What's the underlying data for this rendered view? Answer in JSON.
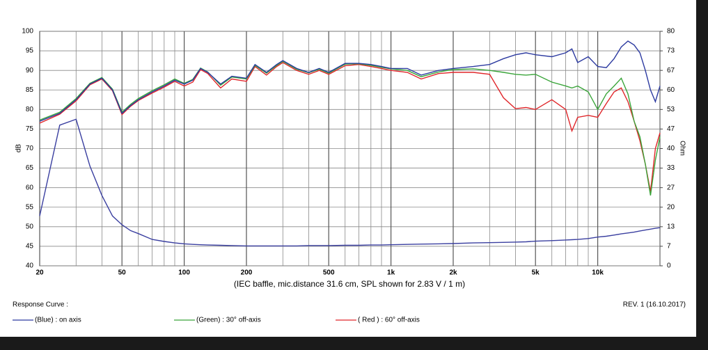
{
  "chart_data": {
    "type": "line",
    "caption": "(IEC baffle, mic.distance 31.6 cm, SPL shown for 2.83 V / 1 m)",
    "ylabel": "dB",
    "y2label": "Ohm",
    "legend_title": "Response Curve :",
    "revision": "REV. 1 (16.10.2017)",
    "xscale": "log",
    "grid": true,
    "xlim": [
      20,
      20000
    ],
    "ylim": [
      40,
      100
    ],
    "y2lim": [
      0,
      80
    ],
    "xticks": [
      20,
      50,
      100,
      200,
      500,
      {
        "value": 1000,
        "label": "1k"
      },
      {
        "value": 2000,
        "label": "2k"
      },
      {
        "value": 5000,
        "label": "5k"
      },
      {
        "value": 10000,
        "label": "10k"
      }
    ],
    "xminor": [
      30,
      40,
      60,
      70,
      80,
      90,
      300,
      400,
      600,
      700,
      800,
      900,
      3000,
      4000,
      6000,
      7000,
      8000,
      9000
    ],
    "yticks": [
      40,
      45,
      50,
      55,
      60,
      65,
      70,
      75,
      80,
      85,
      90,
      95,
      100
    ],
    "y2ticks": [
      0,
      {
        "value": 6.667,
        "label": "7"
      },
      {
        "value": 13.333,
        "label": "13"
      },
      20,
      {
        "value": 26.667,
        "label": "27"
      },
      {
        "value": 33.333,
        "label": "33"
      },
      40,
      {
        "value": 46.667,
        "label": "47"
      },
      {
        "value": 53.333,
        "label": "53"
      },
      60,
      {
        "value": 66.667,
        "label": "67"
      },
      {
        "value": 73.333,
        "label": "73"
      },
      80
    ],
    "x": [
      20,
      25,
      30,
      35,
      40,
      45,
      50,
      55,
      60,
      70,
      80,
      90,
      100,
      110,
      120,
      130,
      150,
      170,
      200,
      220,
      250,
      280,
      300,
      350,
      400,
      450,
      500,
      600,
      700,
      800,
      900,
      1000,
      1200,
      1400,
      1700,
      2000,
      2500,
      3000,
      3500,
      4000,
      4500,
      5000,
      6000,
      7000,
      7500,
      8000,
      9000,
      10000,
      11000,
      12000,
      13000,
      14000,
      15000,
      16000,
      17000,
      18000,
      19000,
      20000
    ],
    "series": [
      {
        "name": "(Blue) : on axis",
        "color": "#2c3aa0",
        "values": [
          77,
          79,
          82.5,
          86.5,
          88,
          85,
          79,
          81,
          82.5,
          84.5,
          86,
          87.5,
          86.5,
          87.5,
          90.5,
          89.5,
          86.5,
          88.5,
          88,
          91.5,
          89.5,
          91.5,
          92.5,
          90.5,
          89.5,
          90.5,
          89.5,
          91.8,
          91.8,
          91.5,
          91,
          90.5,
          90.5,
          88.8,
          90,
          90.5,
          91,
          91.5,
          93,
          94,
          94.5,
          94,
          93.5,
          94.5,
          95.5,
          92,
          93.5,
          91,
          90.7,
          93,
          96,
          97.5,
          96.5,
          94.5,
          90,
          85,
          82,
          86
        ]
      },
      {
        "name": "(Green) : 30° off-axis",
        "color": "#3aa53a",
        "values": [
          77.3,
          79.3,
          82.8,
          86.7,
          88.2,
          85.2,
          79.3,
          81.3,
          82.8,
          84.8,
          86.3,
          87.8,
          86.7,
          87.7,
          90.6,
          89.6,
          86.2,
          88.3,
          87.8,
          91.3,
          89.3,
          91.3,
          92.3,
          90.3,
          89.4,
          90.3,
          89.3,
          91.6,
          91.7,
          91.3,
          90.8,
          90.4,
          90,
          88.4,
          89.6,
          90.2,
          90.4,
          90,
          89.5,
          89,
          88.8,
          89,
          87,
          86,
          85.5,
          86,
          84.5,
          80,
          84,
          86,
          88,
          84,
          77,
          73,
          66,
          58,
          67,
          73
        ]
      },
      {
        "name": "( Red ) : 60° off-axis",
        "color": "#e0262a",
        "values": [
          76.5,
          78.8,
          82.2,
          86.3,
          87.8,
          84.8,
          78.7,
          80.8,
          82.3,
          84.2,
          85.7,
          87.2,
          86,
          87,
          90.2,
          89.2,
          85.5,
          87.8,
          87.2,
          91,
          88.8,
          91,
          92,
          90,
          89,
          90,
          89,
          91.2,
          91.5,
          91,
          90.5,
          90,
          89.5,
          87.8,
          89.2,
          89.5,
          89.5,
          89,
          83,
          80.2,
          80.5,
          80,
          82.5,
          80,
          74.5,
          78,
          78.5,
          78,
          81.5,
          84.5,
          85.5,
          82,
          77,
          72,
          66,
          59,
          70,
          74
        ]
      },
      {
        "axis": "y2",
        "color": "#3a3fa0",
        "values": [
          17,
          48,
          50,
          34,
          24,
          17,
          14,
          12,
          11,
          9,
          8.3,
          7.8,
          7.5,
          7.3,
          7.2,
          7.1,
          7,
          6.9,
          6.8,
          6.8,
          6.8,
          6.8,
          6.8,
          6.8,
          6.9,
          6.9,
          6.9,
          7,
          7,
          7.1,
          7.1,
          7.2,
          7.3,
          7.4,
          7.5,
          7.6,
          7.8,
          7.9,
          8,
          8.1,
          8.2,
          8.4,
          8.6,
          8.8,
          8.9,
          9,
          9.3,
          9.8,
          10.1,
          10.5,
          10.9,
          11.2,
          11.5,
          11.9,
          12.2,
          12.5,
          12.8,
          13
        ]
      }
    ]
  }
}
